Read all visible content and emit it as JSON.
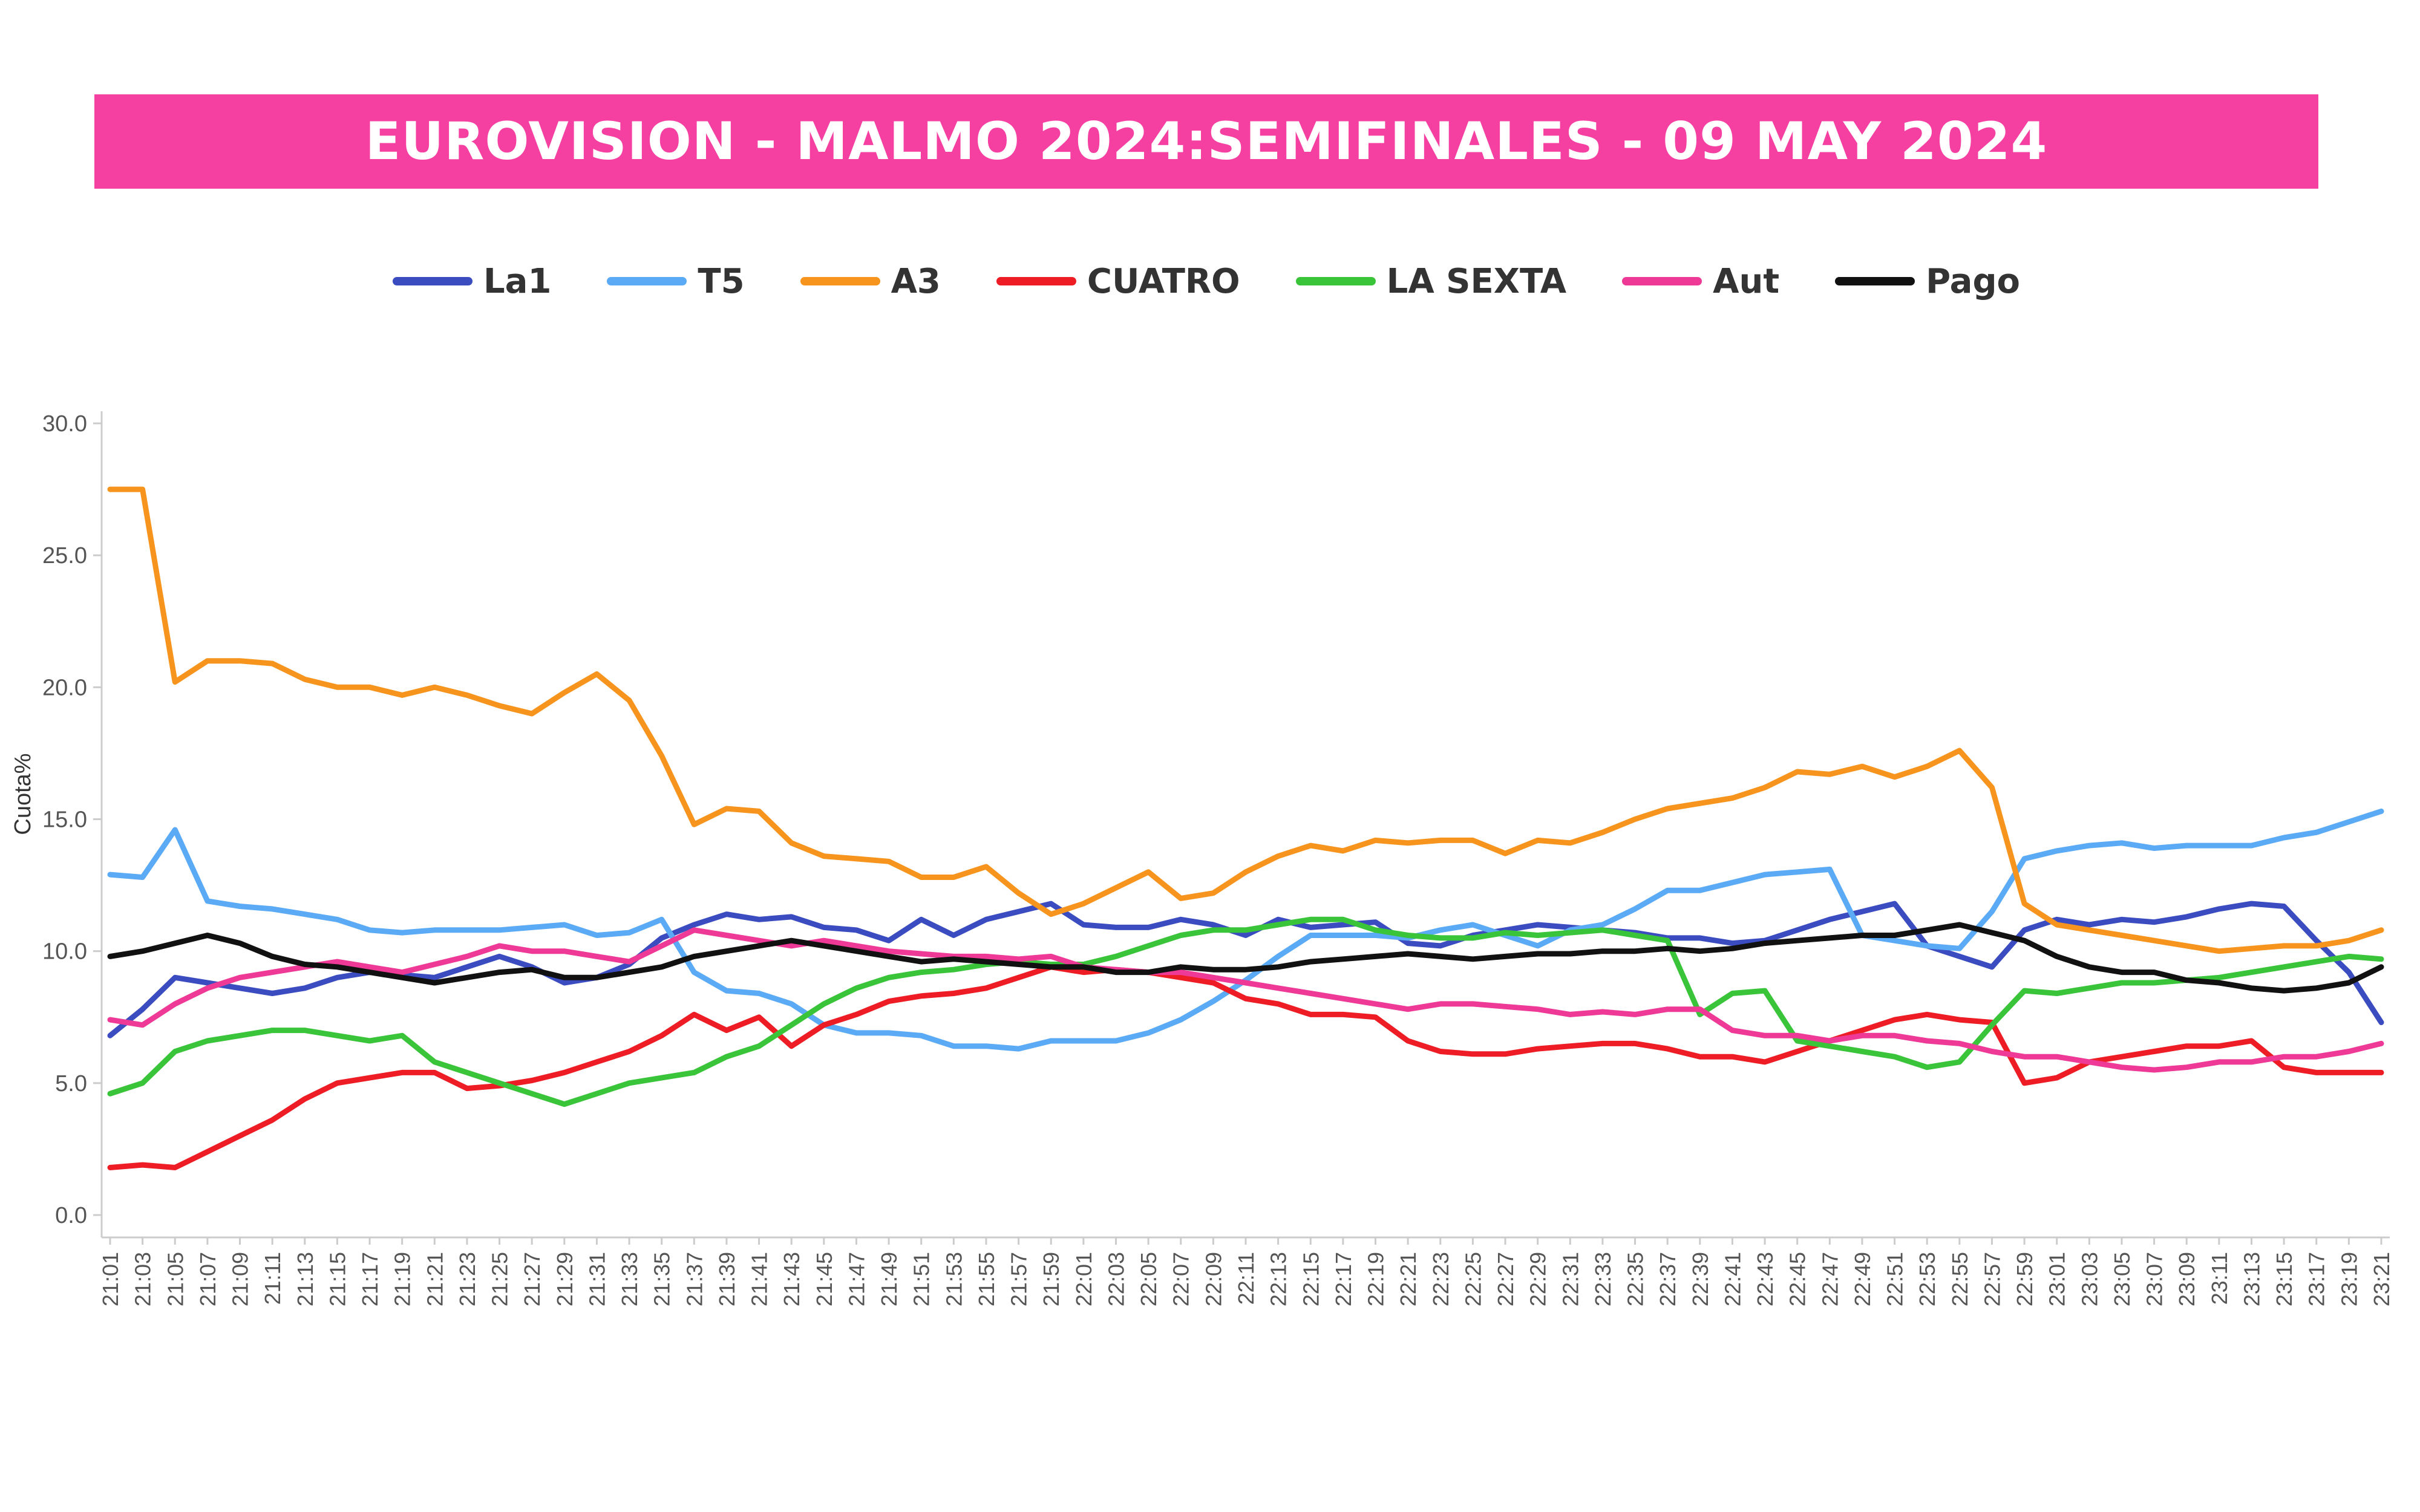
{
  "chart_data": {
    "type": "line",
    "title": "EUROVISION - MALMO 2024:SEMIFINALES - 09 MAY 2024",
    "xlabel": "",
    "ylabel": "Cuota%",
    "ylim": [
      0,
      30
    ],
    "yticks": [
      "0.0",
      "5.0",
      "10.0",
      "15.0",
      "20.0",
      "25.0",
      "30.0"
    ],
    "legend_position": "top-center",
    "grid": false,
    "x": [
      "21:01",
      "21:03",
      "21:05",
      "21:07",
      "21:09",
      "21:11",
      "21:13",
      "21:15",
      "21:17",
      "21:19",
      "21:21",
      "21:23",
      "21:25",
      "21:27",
      "21:29",
      "21:31",
      "21:33",
      "21:35",
      "21:37",
      "21:39",
      "21:41",
      "21:43",
      "21:45",
      "21:47",
      "21:49",
      "21:51",
      "21:53",
      "21:55",
      "21:57",
      "21:59",
      "22:01",
      "22:03",
      "22:05",
      "22:07",
      "22:09",
      "22:11",
      "22:13",
      "22:15",
      "22:17",
      "22:19",
      "22:21",
      "22:23",
      "22:25",
      "22:27",
      "22:29",
      "22:31",
      "22:33",
      "22:35",
      "22:37",
      "22:39",
      "22:41",
      "22:43",
      "22:45",
      "22:47",
      "22:49",
      "22:51",
      "22:53",
      "22:55",
      "22:57",
      "22:59",
      "23:01",
      "23:03",
      "23:05",
      "23:07",
      "23:09",
      "23:11",
      "23:13",
      "23:15",
      "23:17",
      "23:19",
      "23:21"
    ],
    "series": [
      {
        "name": "La1",
        "color": "#3b4cc0",
        "values": [
          6.8,
          7.8,
          9.0,
          8.8,
          8.6,
          8.4,
          8.6,
          9.0,
          9.2,
          9.1,
          9.0,
          9.4,
          9.8,
          9.4,
          8.8,
          9.0,
          9.5,
          10.5,
          11.0,
          11.4,
          11.2,
          11.3,
          10.9,
          10.8,
          10.4,
          11.2,
          10.6,
          11.2,
          11.5,
          11.8,
          11.0,
          10.9,
          10.9,
          11.2,
          11.0,
          10.6,
          11.2,
          10.9,
          11.0,
          11.1,
          10.3,
          10.2,
          10.6,
          10.8,
          11.0,
          10.9,
          10.8,
          10.7,
          10.5,
          10.5,
          10.3,
          10.4,
          10.8,
          11.2,
          11.5,
          11.8,
          10.2,
          9.8,
          9.4,
          10.8,
          11.2,
          11.0,
          11.2,
          11.1,
          11.3,
          11.6,
          11.8,
          11.7,
          10.4,
          9.2,
          7.3
        ]
      },
      {
        "name": "T5",
        "color": "#5aaaf5",
        "values": [
          12.9,
          12.8,
          14.6,
          11.9,
          11.7,
          11.6,
          11.4,
          11.2,
          10.8,
          10.7,
          10.8,
          10.8,
          10.8,
          10.9,
          11.0,
          10.6,
          10.7,
          11.2,
          9.2,
          8.5,
          8.4,
          8.0,
          7.2,
          6.9,
          6.9,
          6.8,
          6.4,
          6.4,
          6.3,
          6.6,
          6.6,
          6.6,
          6.9,
          7.4,
          8.1,
          8.9,
          9.8,
          10.6,
          10.6,
          10.6,
          10.5,
          10.8,
          11.0,
          10.6,
          10.2,
          10.8,
          11.0,
          11.6,
          12.3,
          12.3,
          12.6,
          12.9,
          13.0,
          13.1,
          10.6,
          10.4,
          10.2,
          10.1,
          11.5,
          13.5,
          13.8,
          14.0,
          14.1,
          13.9,
          14.0,
          14.0,
          14.0,
          14.3,
          14.5,
          14.9,
          15.3
        ]
      },
      {
        "name": "A3",
        "color": "#f7941d",
        "values": [
          27.5,
          27.5,
          20.2,
          21.0,
          21.0,
          20.9,
          20.3,
          20.0,
          20.0,
          19.7,
          20.0,
          19.7,
          19.3,
          19.0,
          19.8,
          20.5,
          19.5,
          17.4,
          14.8,
          15.4,
          15.3,
          14.1,
          13.6,
          13.5,
          13.4,
          12.8,
          12.8,
          13.2,
          12.2,
          11.4,
          11.8,
          12.4,
          13.0,
          12.0,
          12.2,
          13.0,
          13.6,
          14.0,
          13.8,
          14.2,
          14.1,
          14.2,
          14.2,
          13.7,
          14.2,
          14.1,
          14.5,
          15.0,
          15.4,
          15.6,
          15.8,
          16.2,
          16.8,
          16.7,
          17.0,
          16.6,
          17.0,
          17.6,
          16.2,
          11.8,
          11.0,
          10.8,
          10.6,
          10.4,
          10.2,
          10.0,
          10.1,
          10.2,
          10.2,
          10.4,
          10.8
        ]
      },
      {
        "name": "CUATRO",
        "color": "#ee1c25",
        "values": [
          1.8,
          1.9,
          1.8,
          2.4,
          3.0,
          3.6,
          4.4,
          5.0,
          5.2,
          5.4,
          5.4,
          4.8,
          4.9,
          5.1,
          5.4,
          5.8,
          6.2,
          6.8,
          7.6,
          7.0,
          7.5,
          6.4,
          7.2,
          7.6,
          8.1,
          8.3,
          8.4,
          8.6,
          9.0,
          9.4,
          9.2,
          9.3,
          9.2,
          9.0,
          8.8,
          8.2,
          8.0,
          7.6,
          7.6,
          7.5,
          6.6,
          6.2,
          6.1,
          6.1,
          6.3,
          6.4,
          6.5,
          6.5,
          6.3,
          6.0,
          6.0,
          5.8,
          6.2,
          6.6,
          7.0,
          7.4,
          7.6,
          7.4,
          7.3,
          5.0,
          5.2,
          5.8,
          6.0,
          6.2,
          6.4,
          6.4,
          6.6,
          5.6,
          5.4,
          5.4,
          5.4
        ]
      },
      {
        "name": "LA SEXTA",
        "color": "#39c43a",
        "values": [
          4.6,
          5.0,
          6.2,
          6.6,
          6.8,
          7.0,
          7.0,
          6.8,
          6.6,
          6.8,
          5.8,
          5.4,
          5.0,
          4.6,
          4.2,
          4.6,
          5.0,
          5.2,
          5.4,
          6.0,
          6.4,
          7.2,
          8.0,
          8.6,
          9.0,
          9.2,
          9.3,
          9.5,
          9.6,
          9.5,
          9.5,
          9.8,
          10.2,
          10.6,
          10.8,
          10.8,
          11.0,
          11.2,
          11.2,
          10.8,
          10.6,
          10.5,
          10.5,
          10.7,
          10.6,
          10.7,
          10.8,
          10.6,
          10.4,
          7.6,
          8.4,
          8.5,
          6.6,
          6.4,
          6.2,
          6.0,
          5.6,
          5.8,
          7.2,
          8.5,
          8.4,
          8.6,
          8.8,
          8.8,
          8.9,
          9.0,
          9.2,
          9.4,
          9.6,
          9.8,
          9.7
        ]
      },
      {
        "name": "Aut",
        "color": "#ee3a96",
        "values": [
          7.4,
          7.2,
          8.0,
          8.6,
          9.0,
          9.2,
          9.4,
          9.6,
          9.4,
          9.2,
          9.5,
          9.8,
          10.2,
          10.0,
          10.0,
          9.8,
          9.6,
          10.2,
          10.8,
          10.6,
          10.4,
          10.2,
          10.4,
          10.2,
          10.0,
          9.9,
          9.8,
          9.8,
          9.7,
          9.8,
          9.4,
          9.3,
          9.2,
          9.2,
          9.0,
          8.8,
          8.6,
          8.4,
          8.2,
          8.0,
          7.8,
          8.0,
          8.0,
          7.9,
          7.8,
          7.6,
          7.7,
          7.6,
          7.8,
          7.8,
          7.0,
          6.8,
          6.8,
          6.6,
          6.8,
          6.8,
          6.6,
          6.5,
          6.2,
          6.0,
          6.0,
          5.8,
          5.6,
          5.5,
          5.6,
          5.8,
          5.8,
          6.0,
          6.0,
          6.2,
          6.5
        ]
      },
      {
        "name": "Pago",
        "color": "#111111",
        "values": [
          9.8,
          10.0,
          10.3,
          10.6,
          10.3,
          9.8,
          9.5,
          9.4,
          9.2,
          9.0,
          8.8,
          9.0,
          9.2,
          9.3,
          9.0,
          9.0,
          9.2,
          9.4,
          9.8,
          10.0,
          10.2,
          10.4,
          10.2,
          10.0,
          9.8,
          9.6,
          9.7,
          9.6,
          9.5,
          9.4,
          9.4,
          9.2,
          9.2,
          9.4,
          9.3,
          9.3,
          9.4,
          9.6,
          9.7,
          9.8,
          9.9,
          9.8,
          9.7,
          9.8,
          9.9,
          9.9,
          10.0,
          10.0,
          10.1,
          10.0,
          10.1,
          10.3,
          10.4,
          10.5,
          10.6,
          10.6,
          10.8,
          11.0,
          10.7,
          10.4,
          9.8,
          9.4,
          9.2,
          9.2,
          8.9,
          8.8,
          8.6,
          8.5,
          8.6,
          8.8,
          9.4
        ]
      }
    ]
  }
}
